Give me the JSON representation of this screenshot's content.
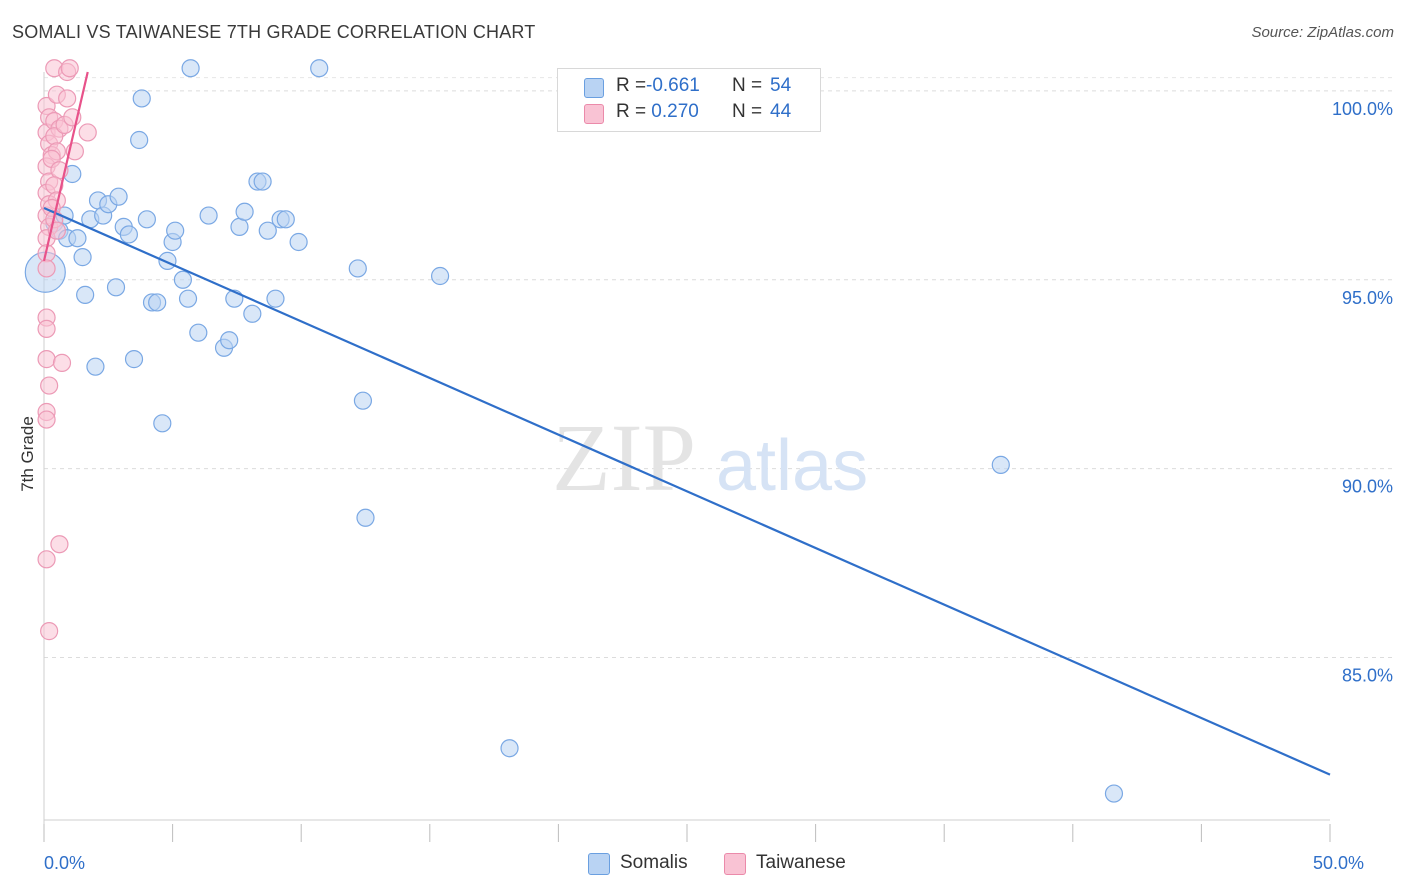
{
  "title": "SOMALI VS TAIWANESE 7TH GRADE CORRELATION CHART",
  "source": "Source: ZipAtlas.com",
  "watermark": {
    "zip": "ZIP",
    "atlas": "atlas"
  },
  "stats": [
    {
      "r_label": "R =",
      "r_value": "-0.661",
      "n_label": "N =",
      "n_value": "54",
      "fill": "#b9d3f3",
      "stroke": "#6a9fe0"
    },
    {
      "r_label": "R =",
      "r_value": " 0.270",
      "n_label": "N =",
      "n_value": "44",
      "fill": "#f9c3d4",
      "stroke": "#eb8aaa"
    }
  ],
  "legend": [
    {
      "label": "Somalis",
      "fill": "#b9d3f3",
      "stroke": "#6a9fe0"
    },
    {
      "label": "Taiwanese",
      "fill": "#f9c3d4",
      "stroke": "#eb8aaa"
    }
  ],
  "chart_data": {
    "type": "scatter",
    "title": "SOMALI VS TAIWANESE 7TH GRADE CORRELATION CHART",
    "xlabel": "",
    "ylabel": "7th Grade",
    "xlim": [
      0,
      50
    ],
    "ylim": [
      80.7,
      100.5
    ],
    "x_tick_labels": [
      {
        "value": 0,
        "label": "0.0%"
      },
      {
        "value": 50,
        "label": "50.0%"
      }
    ],
    "y_tick_labels": [
      {
        "value": 100,
        "label": "100.0%"
      },
      {
        "value": 95,
        "label": "95.0%"
      },
      {
        "value": 90,
        "label": "90.0%"
      },
      {
        "value": 85,
        "label": "85.0%"
      }
    ],
    "grid": true,
    "series": [
      {
        "name": "Somalis",
        "color": "#2f6fc9",
        "fill": "#b9d3f3",
        "trend": {
          "x": [
            0,
            50
          ],
          "y": [
            96.9,
            81.9
          ]
        },
        "points": [
          {
            "x": 0.05,
            "y": 95.2,
            "big": true
          },
          {
            "x": 0.4,
            "y": 96.5
          },
          {
            "x": 0.6,
            "y": 96.3
          },
          {
            "x": 0.8,
            "y": 96.7
          },
          {
            "x": 0.9,
            "y": 96.1
          },
          {
            "x": 1.1,
            "y": 97.8
          },
          {
            "x": 1.3,
            "y": 96.1
          },
          {
            "x": 1.5,
            "y": 95.6
          },
          {
            "x": 1.6,
            "y": 94.6
          },
          {
            "x": 1.8,
            "y": 96.6
          },
          {
            "x": 2.0,
            "y": 92.7
          },
          {
            "x": 2.1,
            "y": 97.1
          },
          {
            "x": 2.3,
            "y": 96.7
          },
          {
            "x": 2.5,
            "y": 97.0
          },
          {
            "x": 2.8,
            "y": 94.8
          },
          {
            "x": 2.9,
            "y": 97.2
          },
          {
            "x": 3.1,
            "y": 96.4
          },
          {
            "x": 3.3,
            "y": 96.2
          },
          {
            "x": 3.5,
            "y": 92.9
          },
          {
            "x": 3.7,
            "y": 98.7
          },
          {
            "x": 3.8,
            "y": 99.8
          },
          {
            "x": 4.0,
            "y": 96.6
          },
          {
            "x": 4.2,
            "y": 94.4
          },
          {
            "x": 4.4,
            "y": 94.4
          },
          {
            "x": 4.6,
            "y": 91.2
          },
          {
            "x": 4.8,
            "y": 95.5
          },
          {
            "x": 5.0,
            "y": 96.0
          },
          {
            "x": 5.1,
            "y": 96.3
          },
          {
            "x": 5.4,
            "y": 95.0
          },
          {
            "x": 5.6,
            "y": 94.5
          },
          {
            "x": 5.7,
            "y": 100.6
          },
          {
            "x": 6.0,
            "y": 93.6
          },
          {
            "x": 6.4,
            "y": 96.7
          },
          {
            "x": 7.0,
            "y": 93.2
          },
          {
            "x": 7.2,
            "y": 93.4
          },
          {
            "x": 7.4,
            "y": 94.5
          },
          {
            "x": 7.6,
            "y": 96.4
          },
          {
            "x": 7.8,
            "y": 96.8
          },
          {
            "x": 8.1,
            "y": 94.1
          },
          {
            "x": 8.3,
            "y": 97.6
          },
          {
            "x": 8.5,
            "y": 97.6
          },
          {
            "x": 8.7,
            "y": 96.3
          },
          {
            "x": 9.0,
            "y": 94.5
          },
          {
            "x": 9.2,
            "y": 96.6
          },
          {
            "x": 9.4,
            "y": 96.6
          },
          {
            "x": 9.9,
            "y": 96.0
          },
          {
            "x": 10.7,
            "y": 100.6
          },
          {
            "x": 12.2,
            "y": 95.3
          },
          {
            "x": 12.4,
            "y": 91.8
          },
          {
            "x": 12.5,
            "y": 88.7
          },
          {
            "x": 15.4,
            "y": 95.1
          },
          {
            "x": 18.1,
            "y": 82.6
          },
          {
            "x": 37.2,
            "y": 90.1
          },
          {
            "x": 41.6,
            "y": 81.4
          }
        ]
      },
      {
        "name": "Taiwanese",
        "color": "#e8528a",
        "fill": "#f9c3d4",
        "trend": {
          "x": [
            0.0,
            1.7
          ],
          "y": [
            95.5,
            100.5
          ]
        },
        "points": [
          {
            "x": 0.1,
            "y": 99.6
          },
          {
            "x": 0.2,
            "y": 99.3
          },
          {
            "x": 0.1,
            "y": 98.9
          },
          {
            "x": 0.2,
            "y": 98.6
          },
          {
            "x": 0.3,
            "y": 98.3
          },
          {
            "x": 0.1,
            "y": 98.0
          },
          {
            "x": 0.2,
            "y": 97.6
          },
          {
            "x": 0.1,
            "y": 97.3
          },
          {
            "x": 0.2,
            "y": 97.0
          },
          {
            "x": 0.1,
            "y": 96.7
          },
          {
            "x": 0.2,
            "y": 96.4
          },
          {
            "x": 0.1,
            "y": 96.1
          },
          {
            "x": 0.1,
            "y": 95.7
          },
          {
            "x": 0.1,
            "y": 95.3
          },
          {
            "x": 0.1,
            "y": 94.0
          },
          {
            "x": 0.1,
            "y": 93.7
          },
          {
            "x": 0.1,
            "y": 92.9
          },
          {
            "x": 0.2,
            "y": 92.2
          },
          {
            "x": 0.1,
            "y": 91.5
          },
          {
            "x": 0.1,
            "y": 91.3
          },
          {
            "x": 0.1,
            "y": 87.6
          },
          {
            "x": 0.2,
            "y": 85.7
          },
          {
            "x": 0.4,
            "y": 100.6
          },
          {
            "x": 0.5,
            "y": 99.9
          },
          {
            "x": 0.4,
            "y": 99.2
          },
          {
            "x": 0.6,
            "y": 99.0
          },
          {
            "x": 0.4,
            "y": 98.8
          },
          {
            "x": 0.5,
            "y": 98.4
          },
          {
            "x": 0.3,
            "y": 98.2
          },
          {
            "x": 0.6,
            "y": 97.9
          },
          {
            "x": 0.4,
            "y": 97.5
          },
          {
            "x": 0.5,
            "y": 97.1
          },
          {
            "x": 0.3,
            "y": 96.9
          },
          {
            "x": 0.4,
            "y": 96.6
          },
          {
            "x": 0.5,
            "y": 96.3
          },
          {
            "x": 0.6,
            "y": 88.0
          },
          {
            "x": 0.7,
            "y": 92.8
          },
          {
            "x": 0.8,
            "y": 99.1
          },
          {
            "x": 0.9,
            "y": 100.5
          },
          {
            "x": 0.9,
            "y": 99.8
          },
          {
            "x": 1.0,
            "y": 100.6
          },
          {
            "x": 1.1,
            "y": 99.3
          },
          {
            "x": 1.2,
            "y": 98.4
          },
          {
            "x": 1.7,
            "y": 98.9
          }
        ]
      }
    ]
  }
}
